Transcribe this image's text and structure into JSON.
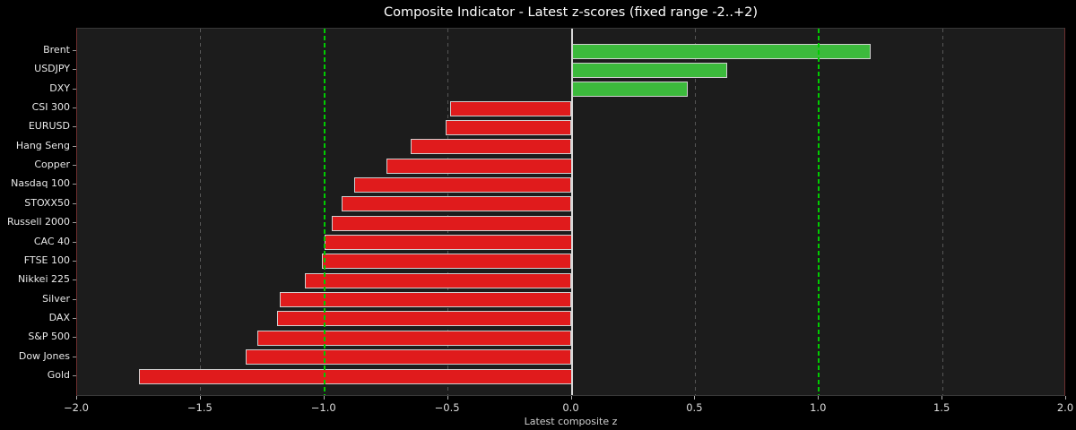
{
  "chart_data": {
    "type": "bar",
    "orientation": "horizontal",
    "title": "Composite Indicator - Latest z-scores (fixed range -2..+2)",
    "xlabel": "Latest composite z",
    "xlim": [
      -2.0,
      2.0
    ],
    "x_tick_values": [
      -2.0,
      -1.5,
      -1.0,
      -0.5,
      0.0,
      0.5,
      1.0,
      1.5,
      2.0
    ],
    "x_tick_labels": [
      "−2.0",
      "−1.5",
      "−1.0",
      "−0.5",
      "0.0",
      "0.5",
      "1.0",
      "1.5",
      "2.0"
    ],
    "categories": [
      "Brent",
      "USDJPY",
      "DXY",
      "CSI 300",
      "EURUSD",
      "Hang Seng",
      "Copper",
      "Nasdaq 100",
      "STOXX50",
      "Russell 2000",
      "CAC 40",
      "FTSE 100",
      "Nikkei 225",
      "Silver",
      "DAX",
      "S&P 500",
      "Dow Jones",
      "Gold"
    ],
    "values": [
      1.21,
      0.63,
      0.47,
      -0.49,
      -0.51,
      -0.65,
      -0.75,
      -0.88,
      -0.93,
      -0.97,
      -1.0,
      -1.01,
      -1.08,
      -1.18,
      -1.19,
      -1.27,
      -1.32,
      -1.75
    ],
    "gridlines": [
      -1.5,
      -0.5,
      0.5,
      1.5
    ],
    "threshold_lines": [
      -1.0,
      1.0
    ],
    "zero_line": 0.0,
    "grid_on": true,
    "legend": "none",
    "colors": {
      "positive_bar": "#3cba3c",
      "negative_bar": "#e01b1c",
      "bar_edge": "#d0d0d0",
      "threshold_line": "#00cc00",
      "zero_line": "#d8d8d8",
      "gridline": "#565656",
      "figure_background": "#000000",
      "plot_background": "#1c1c1c"
    }
  }
}
